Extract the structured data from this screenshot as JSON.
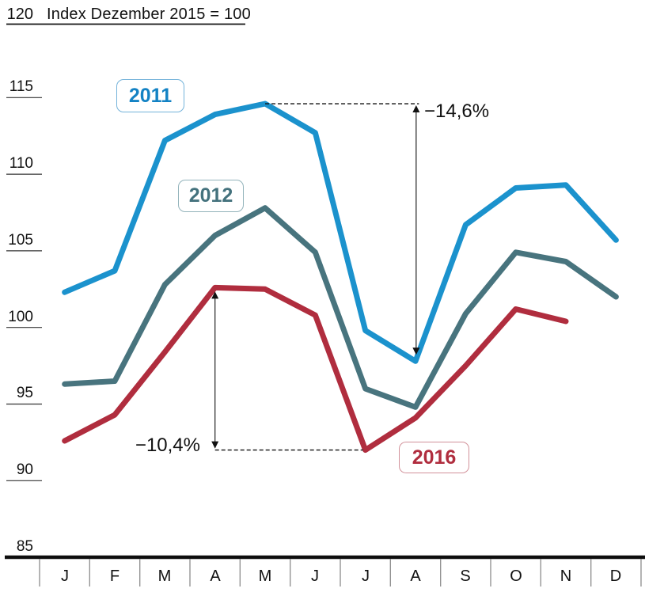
{
  "header": {
    "axis_top_label": "120",
    "title": "Index Dezember 2015 = 100"
  },
  "chart_data": {
    "type": "line",
    "title": "Index Dezember 2015 = 100",
    "categories": [
      "J",
      "F",
      "M",
      "A",
      "M",
      "J",
      "J",
      "A",
      "S",
      "O",
      "N",
      "D"
    ],
    "y_ticks": [
      120,
      115,
      110,
      105,
      100,
      95,
      90,
      85
    ],
    "ylim": [
      85,
      120
    ],
    "grid": "left-tick-underlines-only",
    "legend_position": "boxed-labels-near-lines",
    "series": [
      {
        "name": "2011",
        "color": "#1b92cd",
        "values": [
          102.3,
          103.7,
          112.2,
          113.9,
          114.6,
          112.7,
          99.8,
          97.8,
          106.7,
          109.1,
          109.3,
          105.7
        ]
      },
      {
        "name": "2012",
        "color": "#48747e",
        "values": [
          96.3,
          96.5,
          102.8,
          106.0,
          107.8,
          104.9,
          96.0,
          94.8,
          100.9,
          104.9,
          104.3,
          102.0
        ]
      },
      {
        "name": "2016",
        "color": "#b02d3e",
        "values": [
          92.6,
          94.3,
          98.4,
          102.6,
          102.5,
          100.8,
          92.0,
          94.1,
          97.5,
          101.2,
          100.4
        ]
      }
    ],
    "annotations": [
      {
        "id": "drop-2011",
        "label": "−14,6%",
        "series": "2011",
        "peak_month_index": 4,
        "peak_value": 114.6,
        "trough_month_index": 7,
        "trough_value": 97.8
      },
      {
        "id": "drop-2016",
        "label": "−10,4%",
        "series": "2016",
        "peak_month_index": 3,
        "peak_value": 102.6,
        "trough_month_index": 6,
        "trough_value": 92.0
      }
    ]
  }
}
